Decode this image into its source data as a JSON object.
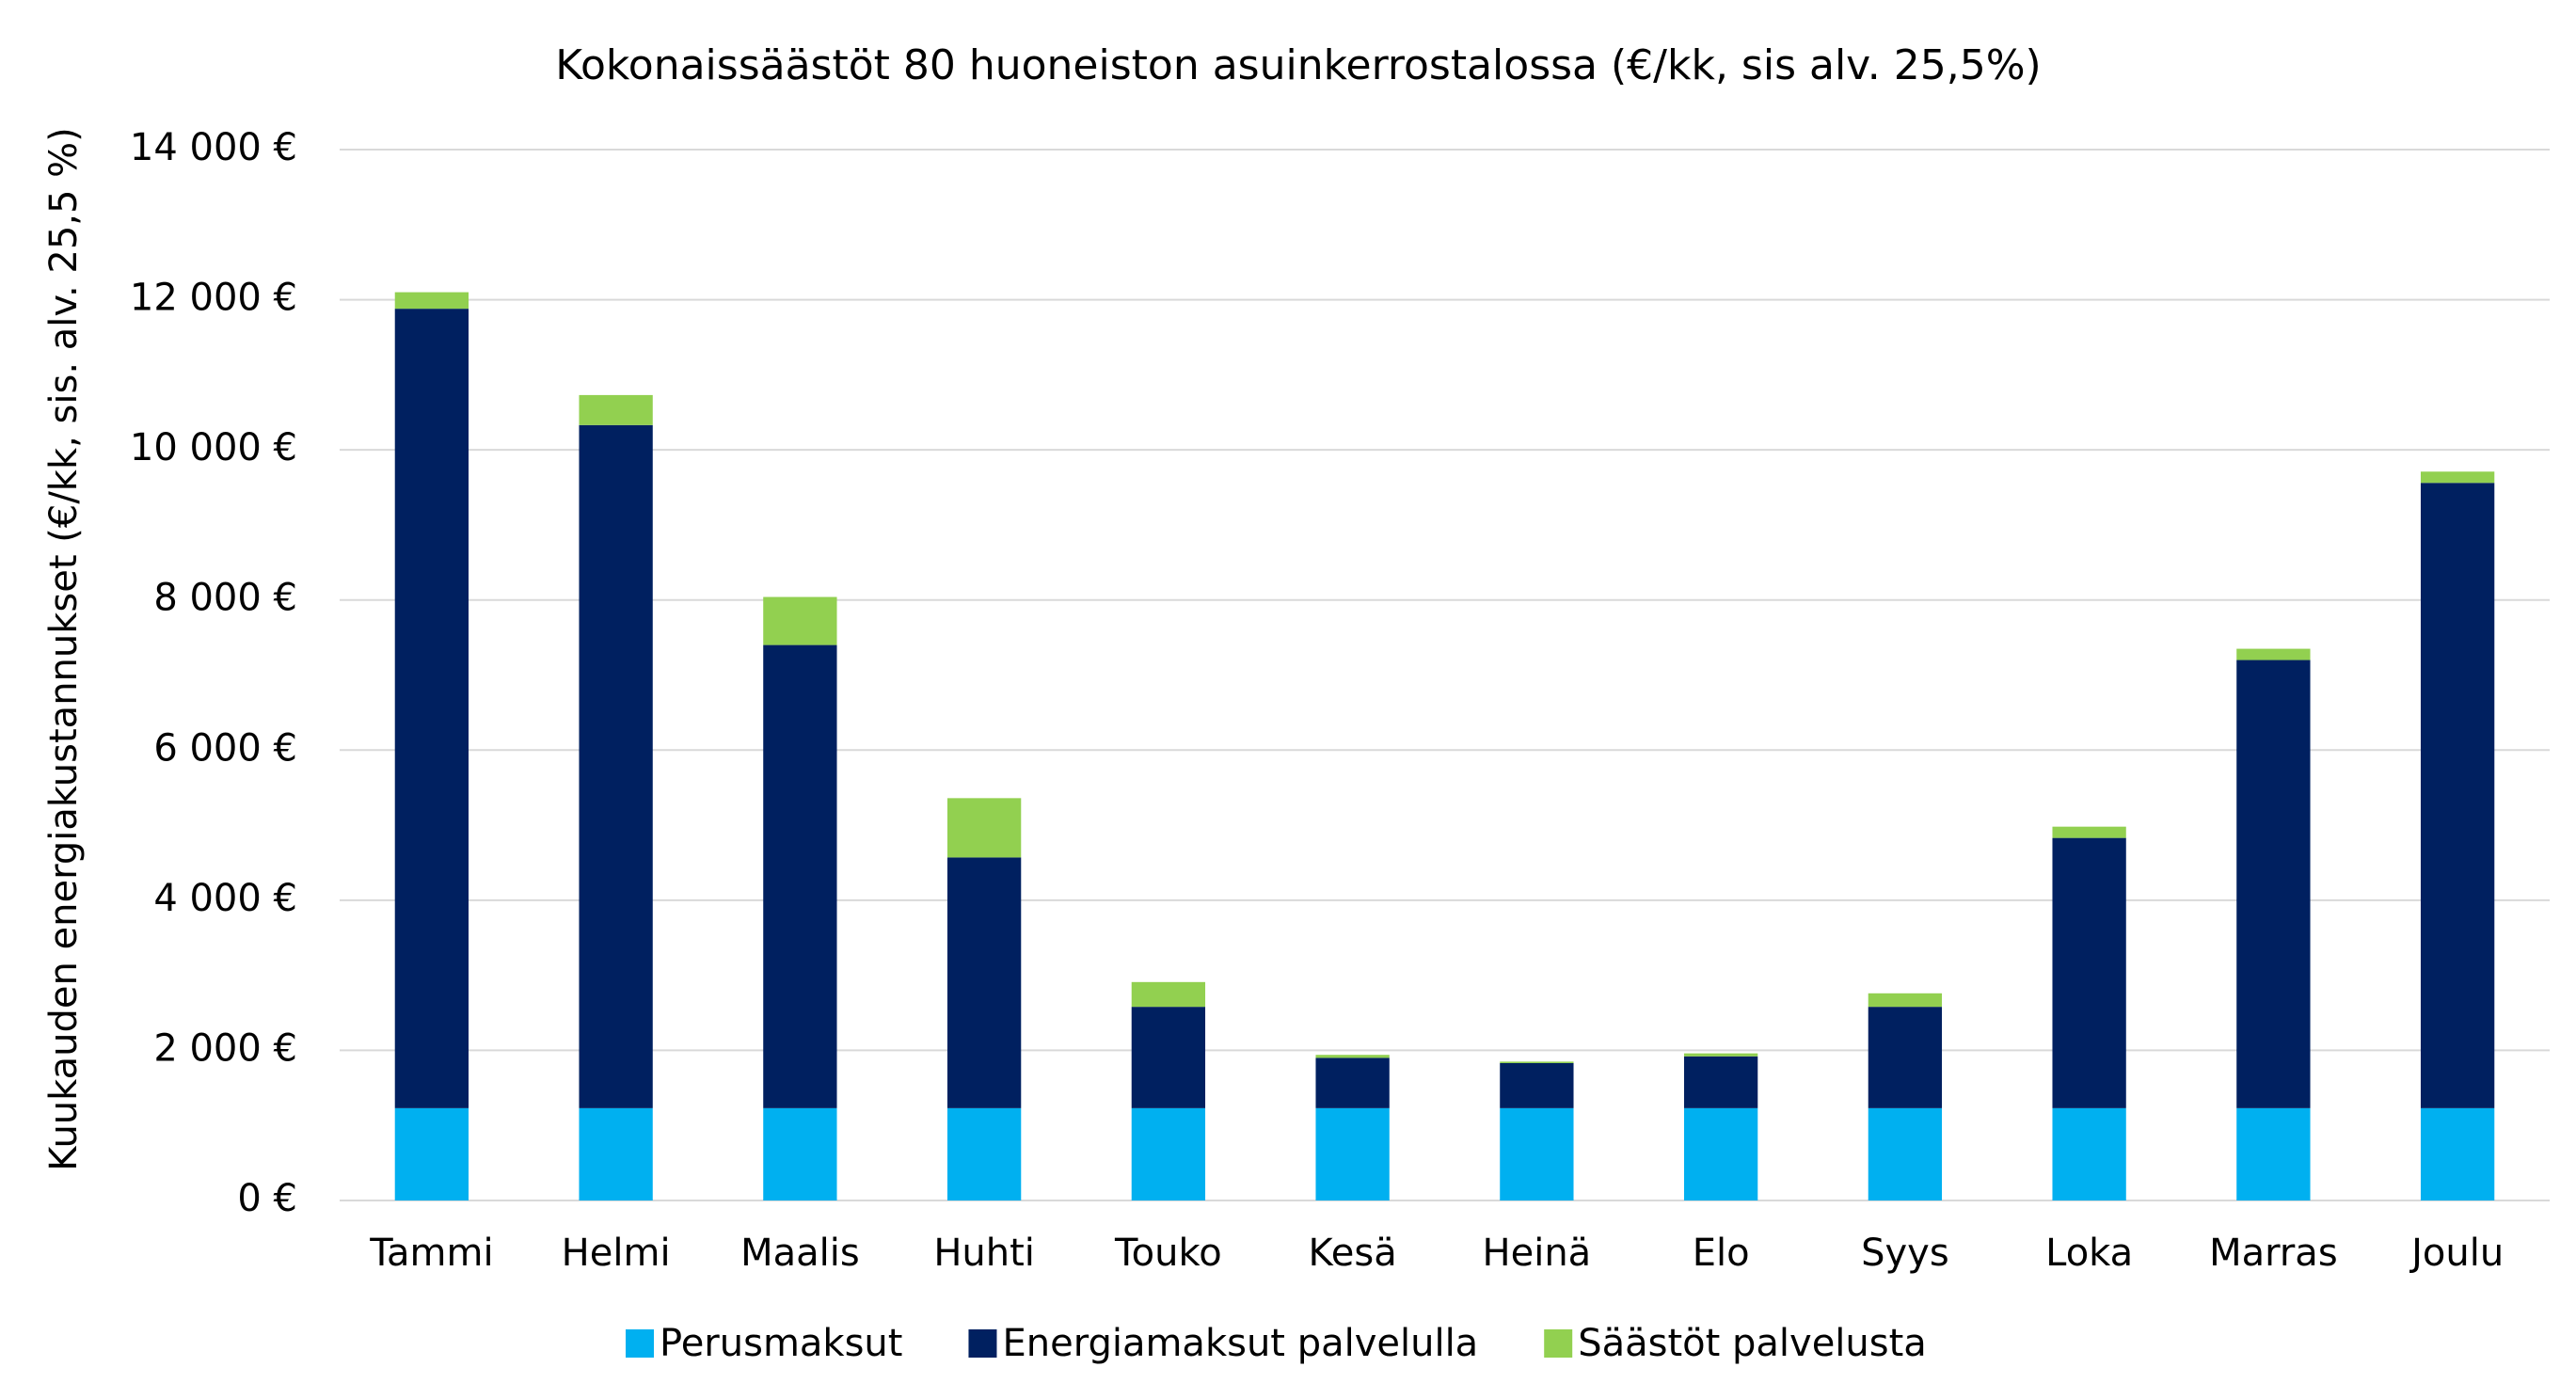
{
  "chart_data": {
    "type": "stacked-bar",
    "title": "Kokonaissäästöt 80 huoneiston asuinkerrostalossa (€/kk, sis alv. 25,5%)",
    "y_label": "Kuukauden energiakustannukset (€/kk, sis. alv. 25,5 %)",
    "categories": [
      "Tammi",
      "Helmi",
      "Maalis",
      "Huhti",
      "Touko",
      "Kesä",
      "Heinä",
      "Elo",
      "Syys",
      "Loka",
      "Marras",
      "Joulu"
    ],
    "series": [
      {
        "name": "Perusmaksut",
        "color": "#00b0f0",
        "values": [
          1230,
          1230,
          1230,
          1230,
          1230,
          1230,
          1230,
          1230,
          1230,
          1230,
          1230,
          1230
        ]
      },
      {
        "name": "Energiamaksut palvelulla",
        "color": "#002060",
        "values": [
          10650,
          9100,
          6170,
          3340,
          1350,
          670,
          600,
          690,
          1350,
          3600,
          5970,
          8330
        ]
      },
      {
        "name": "Säästöt palvelusta",
        "color": "#92d050",
        "values": [
          220,
          400,
          640,
          790,
          330,
          40,
          20,
          40,
          180,
          150,
          150,
          150
        ]
      }
    ],
    "ylim": [
      0,
      14000
    ],
    "yticks": [
      {
        "value": 0,
        "label": "0 €"
      },
      {
        "value": 2000,
        "label": "2 000 €"
      },
      {
        "value": 4000,
        "label": "4 000 €"
      },
      {
        "value": 6000,
        "label": "6 000 €"
      },
      {
        "value": 8000,
        "label": "8 000 €"
      },
      {
        "value": 10000,
        "label": "10 000 €"
      },
      {
        "value": 12000,
        "label": "12 000 €"
      },
      {
        "value": 14000,
        "label": "14 000 €"
      }
    ],
    "grid": true,
    "legend": "bottom"
  }
}
